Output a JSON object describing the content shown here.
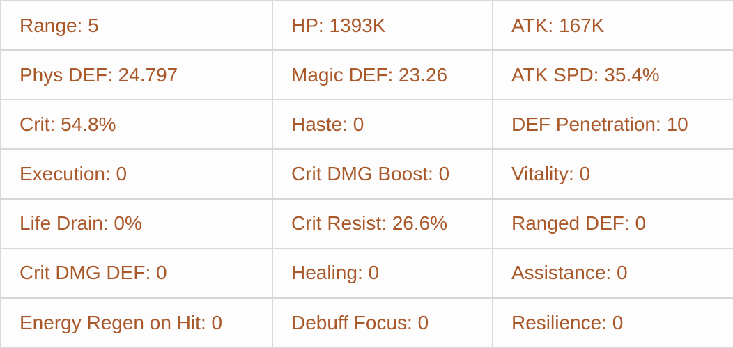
{
  "colors": {
    "text": "#a9582a",
    "border": "#d8d8d8",
    "cell_background": "#fdfdfd"
  },
  "stats": {
    "separator": ": ",
    "rows": [
      [
        {
          "label": "Range",
          "value": "5"
        },
        {
          "label": "HP",
          "value": "1393K"
        },
        {
          "label": "ATK",
          "value": "167K"
        }
      ],
      [
        {
          "label": "Phys DEF",
          "value": "24.797"
        },
        {
          "label": "Magic DEF",
          "value": "23.26"
        },
        {
          "label": "ATK SPD",
          "value": "35.4%"
        }
      ],
      [
        {
          "label": "Crit",
          "value": "54.8%"
        },
        {
          "label": "Haste",
          "value": "0"
        },
        {
          "label": "DEF Penetration",
          "value": "10"
        }
      ],
      [
        {
          "label": "Execution",
          "value": "0"
        },
        {
          "label": "Crit DMG Boost",
          "value": "0"
        },
        {
          "label": "Vitality",
          "value": "0"
        }
      ],
      [
        {
          "label": "Life Drain",
          "value": "0%"
        },
        {
          "label": "Crit Resist",
          "value": "26.6%"
        },
        {
          "label": "Ranged DEF",
          "value": "0"
        }
      ],
      [
        {
          "label": "Crit DMG DEF",
          "value": "0"
        },
        {
          "label": "Healing",
          "value": "0"
        },
        {
          "label": "Assistance",
          "value": "0"
        }
      ],
      [
        {
          "label": "Energy Regen on Hit",
          "value": "0"
        },
        {
          "label": "Debuff Focus",
          "value": "0"
        },
        {
          "label": "Resilience",
          "value": "0"
        }
      ]
    ]
  }
}
